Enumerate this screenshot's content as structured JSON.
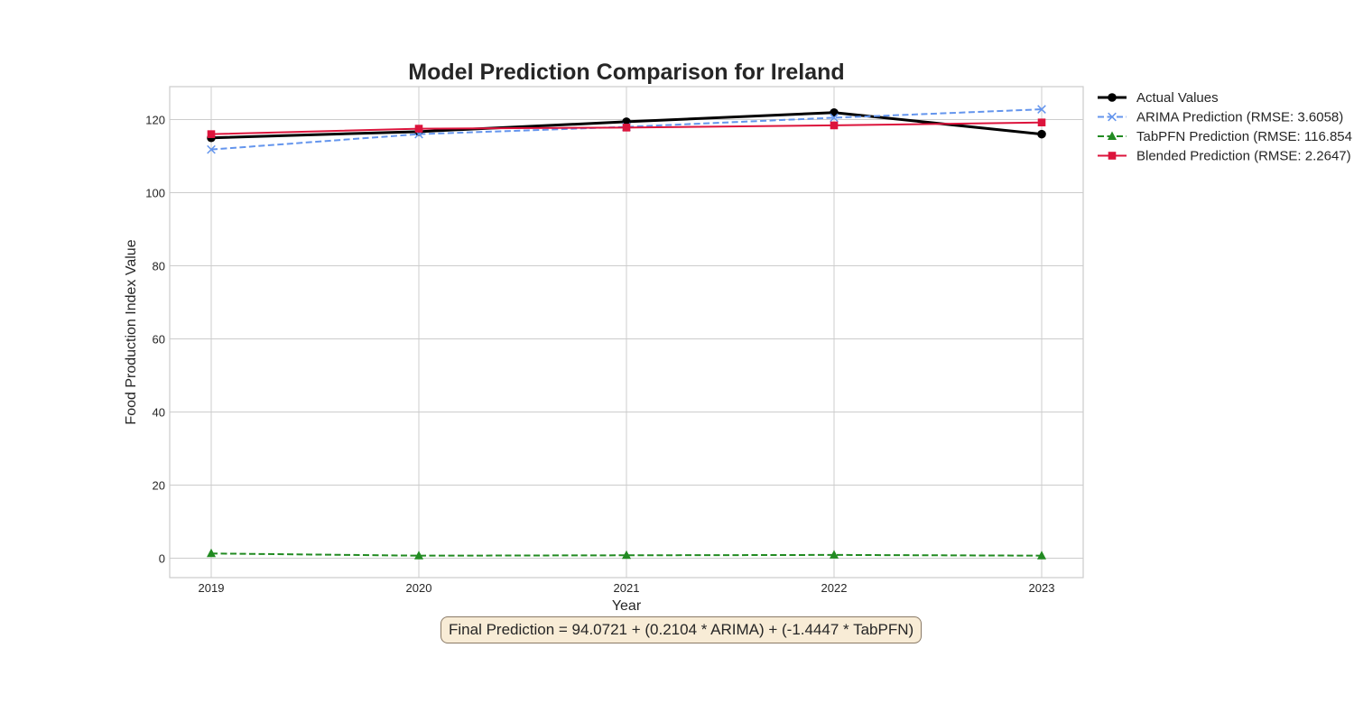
{
  "chart_data": {
    "type": "line",
    "title": "Model Prediction Comparison for Ireland",
    "xlabel": "Year",
    "ylabel": "Food Production Index Value",
    "x": [
      2019,
      2020,
      2021,
      2022,
      2023
    ],
    "xlim": [
      2018.8,
      2023.2
    ],
    "ylim": [
      -5.3,
      129
    ],
    "yticks": [
      0,
      20,
      40,
      60,
      80,
      100,
      120
    ],
    "grid": true,
    "legend_position": "outside-right",
    "series": [
      {
        "name": "Actual Values",
        "values": [
          115.0,
          116.7,
          119.4,
          121.9,
          116.0
        ],
        "color": "#000000",
        "linestyle": "solid",
        "marker": "circle"
      },
      {
        "name": "ARIMA Prediction (RMSE: 3.6058)",
        "values": [
          111.8,
          116.0,
          118.0,
          120.5,
          122.8
        ],
        "color": "#6495ed",
        "linestyle": "dashed",
        "marker": "x"
      },
      {
        "name": "TabPFN Prediction (RMSE: 116.854",
        "values": [
          1.3,
          0.7,
          0.8,
          0.9,
          0.7
        ],
        "color": "#228b22",
        "linestyle": "dashed",
        "marker": "triangle"
      },
      {
        "name": "Blended Prediction (RMSE: 2.2647)",
        "values": [
          116.0,
          117.5,
          117.8,
          118.4,
          119.2
        ],
        "color": "#dc143c",
        "linestyle": "solid",
        "marker": "square"
      }
    ],
    "annotation": "Final Prediction = 94.0721 + (0.2104 * ARIMA) + (-1.4447 * TabPFN)"
  }
}
